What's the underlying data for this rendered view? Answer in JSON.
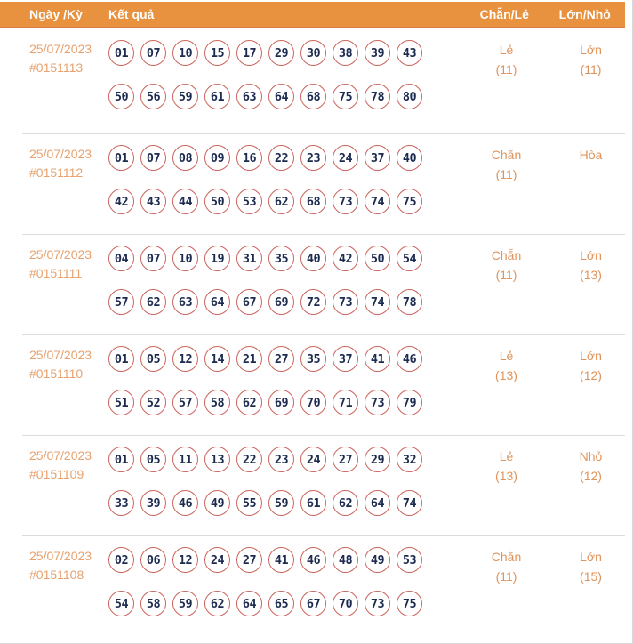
{
  "header": {
    "col_date": "Ngày /Kỳ",
    "col_result": "Kết quả",
    "col_parity": "Chẵn/Lẻ",
    "col_size": "Lớn/Nhỏ"
  },
  "colors": {
    "header_bg": "#e8913e",
    "header_text": "#ffffff",
    "date_text": "#e7a26f",
    "status_text": "#e0935a",
    "ball_border": "#ca655f",
    "ball_number": "#1c2b4f",
    "row_separator": "#dcdcdc"
  },
  "rows": [
    {
      "date": "25/07/2023",
      "draw_id": "#0151113",
      "numbers_line1": [
        "01",
        "07",
        "10",
        "15",
        "17",
        "29",
        "30",
        "38",
        "39",
        "43"
      ],
      "numbers_line2": [
        "50",
        "56",
        "59",
        "61",
        "63",
        "64",
        "68",
        "75",
        "78",
        "80"
      ],
      "parity_label": "Lẻ",
      "parity_count": "(11)",
      "size_label": "Lớn",
      "size_count": "(11)"
    },
    {
      "date": "25/07/2023",
      "draw_id": "#0151112",
      "numbers_line1": [
        "01",
        "07",
        "08",
        "09",
        "16",
        "22",
        "23",
        "24",
        "37",
        "40"
      ],
      "numbers_line2": [
        "42",
        "43",
        "44",
        "50",
        "53",
        "62",
        "68",
        "73",
        "74",
        "75"
      ],
      "parity_label": "Chẵn",
      "parity_count": "(11)",
      "size_label": "Hòa",
      "size_count": ""
    },
    {
      "date": "25/07/2023",
      "draw_id": "#0151111",
      "numbers_line1": [
        "04",
        "07",
        "10",
        "19",
        "31",
        "35",
        "40",
        "42",
        "50",
        "54"
      ],
      "numbers_line2": [
        "57",
        "62",
        "63",
        "64",
        "67",
        "69",
        "72",
        "73",
        "74",
        "78"
      ],
      "parity_label": "Chẵn",
      "parity_count": "(11)",
      "size_label": "Lớn",
      "size_count": "(13)"
    },
    {
      "date": "25/07/2023",
      "draw_id": "#0151110",
      "numbers_line1": [
        "01",
        "05",
        "12",
        "14",
        "21",
        "27",
        "35",
        "37",
        "41",
        "46"
      ],
      "numbers_line2": [
        "51",
        "52",
        "57",
        "58",
        "62",
        "69",
        "70",
        "71",
        "73",
        "79"
      ],
      "parity_label": "Lẻ",
      "parity_count": "(13)",
      "size_label": "Lớn",
      "size_count": "(12)"
    },
    {
      "date": "25/07/2023",
      "draw_id": "#0151109",
      "numbers_line1": [
        "01",
        "05",
        "11",
        "13",
        "22",
        "23",
        "24",
        "27",
        "29",
        "32"
      ],
      "numbers_line2": [
        "33",
        "39",
        "46",
        "49",
        "55",
        "59",
        "61",
        "62",
        "64",
        "74"
      ],
      "parity_label": "Lẻ",
      "parity_count": "(13)",
      "size_label": "Nhỏ",
      "size_count": "(12)"
    },
    {
      "date": "25/07/2023",
      "draw_id": "#0151108",
      "numbers_line1": [
        "02",
        "06",
        "12",
        "24",
        "27",
        "41",
        "46",
        "48",
        "49",
        "53"
      ],
      "numbers_line2": [
        "54",
        "58",
        "59",
        "62",
        "64",
        "65",
        "67",
        "70",
        "73",
        "75"
      ],
      "parity_label": "Chẵn",
      "parity_count": "(11)",
      "size_label": "Lớn",
      "size_count": "(15)"
    }
  ]
}
